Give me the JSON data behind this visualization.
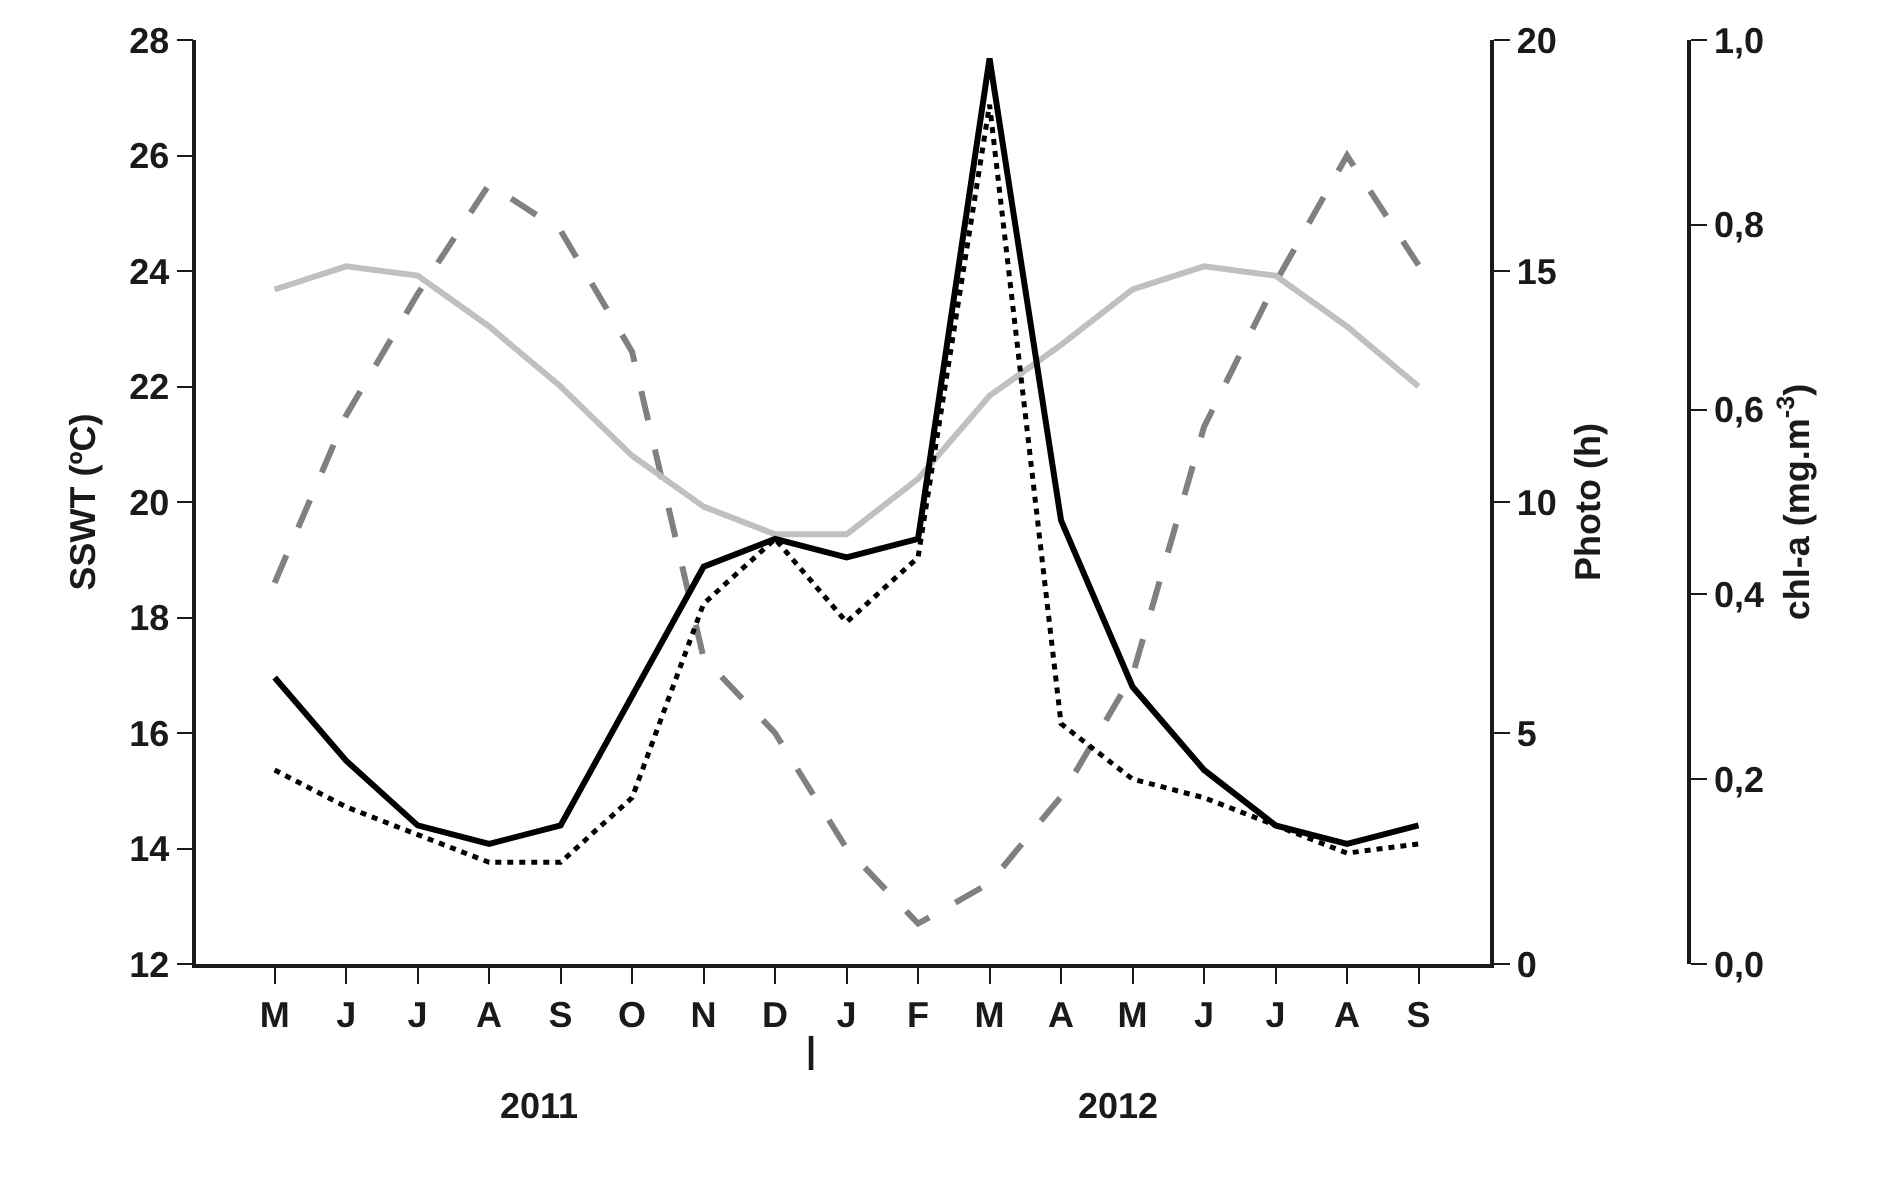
{
  "chart_data": {
    "type": "line",
    "categories": [
      "M",
      "J",
      "J",
      "A",
      "S",
      "O",
      "N",
      "D",
      "J",
      "F",
      "M",
      "A",
      "M",
      "J",
      "J",
      "A",
      "S"
    ],
    "ylabel": "SSWT (ºC)",
    "y2label": "Photo (h)",
    "y3label": "chl-a (mg.m$^{-3}$)",
    "ylim": [
      12,
      28
    ],
    "yticks": [
      12,
      14,
      16,
      18,
      20,
      22,
      24,
      26,
      28
    ],
    "y2lim": [
      0,
      20
    ],
    "y2ticks": [
      0,
      5,
      10,
      15,
      20
    ],
    "y3lim": [
      0,
      1
    ],
    "y3ticks": [
      {
        "value": 0,
        "label": "0,0"
      },
      {
        "value": 0.2,
        "label": "0,2"
      },
      {
        "value": 0.4,
        "label": "0,4"
      },
      {
        "value": 0.6,
        "label": "0,6"
      },
      {
        "value": 0.8,
        "label": "0,8"
      },
      {
        "value": 1,
        "label": "1,0"
      }
    ],
    "marker": "none",
    "annotations": [
      "2011",
      "|",
      "2012"
    ],
    "series": [
      {
        "color": "#808080",
        "line_style": "dashed",
        "values": [
          18.6,
          21.5,
          23.6,
          25.5,
          24.7,
          22.6,
          17.3,
          16.0,
          14.0,
          12.7,
          13.4,
          14.9,
          17.0,
          21.3,
          23.8,
          26.0,
          24.1
        ]
      },
      {
        "color": "#c0c0c0",
        "line_style": "solid",
        "axis": "y2",
        "values": [
          14.6,
          15.1,
          14.9,
          13.8,
          12.5,
          11.0,
          9.9,
          9.3,
          9.3,
          10.5,
          12.3,
          13.4,
          14.6,
          15.1,
          14.9,
          13.8,
          12.5
        ]
      },
      {
        "color": "#000000",
        "line_style": "solid",
        "axis": "y3",
        "values": [
          0.31,
          0.22,
          0.15,
          0.13,
          0.15,
          0.29,
          0.43,
          0.46,
          0.44,
          0.46,
          0.98,
          0.48,
          0.3,
          0.21,
          0.15,
          0.13,
          0.15
        ]
      },
      {
        "color": "#000000",
        "line_style": "dotted",
        "axis": "y3",
        "values": [
          0.21,
          0.17,
          0.14,
          0.11,
          0.11,
          0.18,
          0.39,
          0.46,
          0.37,
          0.44,
          0.93,
          0.26,
          0.2,
          0.18,
          0.15,
          0.12,
          0.13
        ]
      }
    ]
  }
}
